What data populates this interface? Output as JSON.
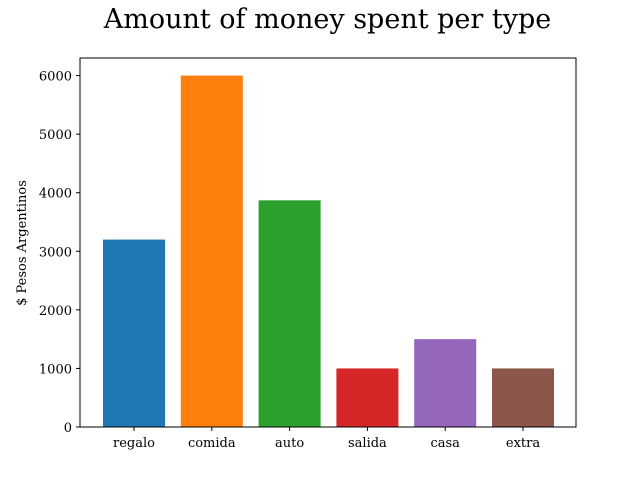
{
  "chart_data": {
    "type": "bar",
    "title": "Amount of money spent per type",
    "xlabel": "",
    "ylabel": "$ Pesos Argentinos",
    "categories": [
      "regalo",
      "comida",
      "auto",
      "salida",
      "casa",
      "extra"
    ],
    "values": [
      3200,
      6000,
      3870,
      1000,
      1500,
      1000
    ],
    "colors": [
      "#1f77b4",
      "#ff7f0e",
      "#2ca02c",
      "#d62728",
      "#9467bd",
      "#8c564b"
    ],
    "ylim": [
      0,
      6000
    ],
    "yticks": [
      "0",
      "1000",
      "2000",
      "3000",
      "4000",
      "5000",
      "6000"
    ],
    "grid": false,
    "legend": "none"
  }
}
